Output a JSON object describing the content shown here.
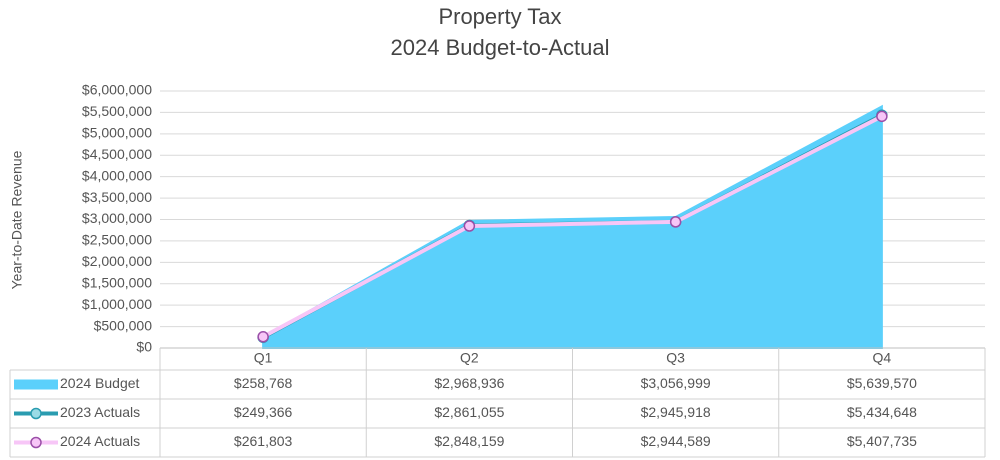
{
  "chart_data": {
    "type": "line",
    "title": "Property Tax",
    "subtitle": "2024 Budget-to-Actual",
    "y_label": "Year-to-Date Revenue",
    "categories": [
      "Q1",
      "Q2",
      "Q3",
      "Q4"
    ],
    "ylim": [
      0,
      6000000
    ],
    "yticks": [
      {
        "value": 0,
        "label": "$0"
      },
      {
        "value": 500000,
        "label": "$500,000"
      },
      {
        "value": 1000000,
        "label": "$1,000,000"
      },
      {
        "value": 1500000,
        "label": "$1,500,000"
      },
      {
        "value": 2000000,
        "label": "$2,000,000"
      },
      {
        "value": 2500000,
        "label": "$2,500,000"
      },
      {
        "value": 3000000,
        "label": "$3,000,000"
      },
      {
        "value": 3500000,
        "label": "$3,500,000"
      },
      {
        "value": 4000000,
        "label": "$4,000,000"
      },
      {
        "value": 4500000,
        "label": "$4,500,000"
      },
      {
        "value": 5000000,
        "label": "$5,000,000"
      },
      {
        "value": 5500000,
        "label": "$5,500,000"
      },
      {
        "value": 6000000,
        "label": "$6,000,000"
      }
    ],
    "grid": true,
    "series": [
      {
        "name": "2024 Budget",
        "type": "area",
        "color": "#5bd0fb",
        "values": [
          258768,
          2968936,
          3056999,
          5639570
        ],
        "value_labels": [
          "$258,768",
          "$2,968,936",
          "$3,056,999",
          "$5,639,570"
        ]
      },
      {
        "name": "2023 Actuals",
        "type": "line",
        "color": "#2a9cb0",
        "markers": true,
        "values": [
          249366,
          2861055,
          2945918,
          5434648
        ],
        "value_labels": [
          "$249,366",
          "$2,861,055",
          "$2,945,918",
          "$5,434,648"
        ]
      },
      {
        "name": "2024 Actuals",
        "type": "line",
        "color": "#f7c6f7",
        "marker_edge": "#9b4fa8",
        "markers": true,
        "values": [
          261803,
          2848159,
          2944589,
          5407735
        ],
        "value_labels": [
          "$261,803",
          "$2,848,159",
          "$2,944,589",
          "$5,407,735"
        ]
      }
    ]
  }
}
